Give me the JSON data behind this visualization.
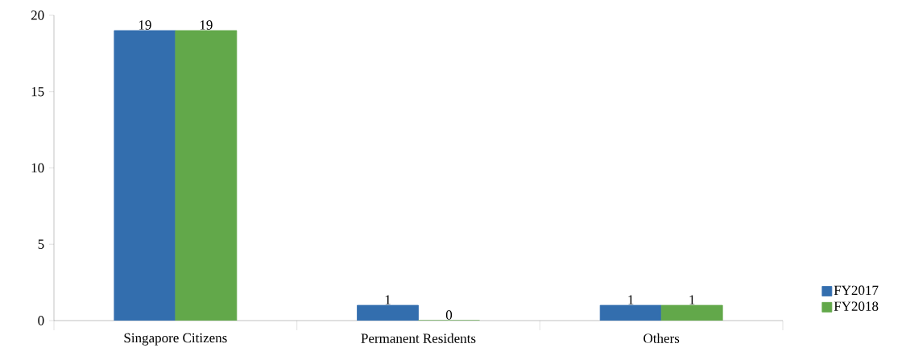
{
  "chart_data": {
    "type": "bar",
    "categories": [
      "Singapore Citizens",
      "Permanent Residents",
      "Others"
    ],
    "series": [
      {
        "name": "FY2017",
        "color": "#336eae",
        "values": [
          19,
          1,
          1
        ]
      },
      {
        "name": "FY2018",
        "color": "#62a84a",
        "values": [
          19,
          0,
          1
        ]
      }
    ],
    "ylim": [
      0,
      20
    ],
    "yticks": [
      0,
      5,
      10,
      15,
      20
    ],
    "grid": false,
    "legend": "bottom right",
    "data_labels": true
  }
}
